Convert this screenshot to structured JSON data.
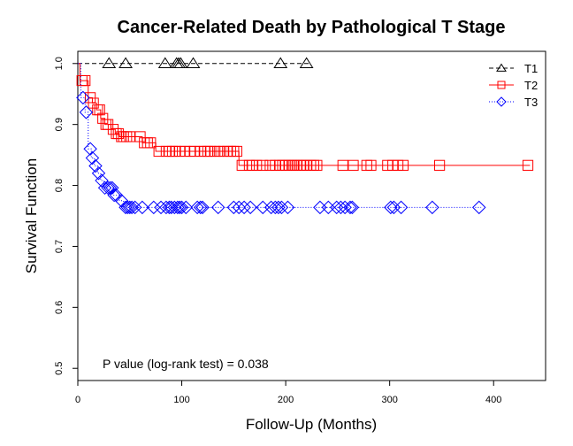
{
  "chart_data": {
    "type": "line",
    "subtype": "kaplan-meier step curves with censor markers",
    "title": "Cancer-Related Death by Pathological T Stage",
    "xlabel": "Follow-Up (Months)",
    "ylabel": "Survival Function",
    "xlim": [
      0,
      450
    ],
    "ylim": [
      0.48,
      1.02
    ],
    "xticks": [
      0,
      100,
      200,
      300,
      400
    ],
    "yticks": [
      0.5,
      0.6,
      0.7,
      0.8,
      0.9,
      1.0
    ],
    "xtick_labels": [
      "0",
      "100",
      "200",
      "300",
      "400"
    ],
    "ytick_labels": [
      "0.5",
      "0.6",
      "0.7",
      "0.8",
      "0.9",
      "1.0"
    ],
    "grid": false,
    "legend_position": "top-right",
    "annotation": "P value (log-rank test) =  0.038",
    "series": [
      {
        "name": "T1",
        "color": "#000000",
        "line_style": "dashed",
        "marker": "triangle",
        "steps": [
          [
            0,
            1.0
          ],
          [
            222,
            1.0
          ]
        ],
        "censored": [
          [
            30,
            1.0
          ],
          [
            46,
            1.0
          ],
          [
            84,
            1.0
          ],
          [
            95,
            1.0
          ],
          [
            97,
            1.0
          ],
          [
            99,
            1.0
          ],
          [
            111,
            1.0
          ],
          [
            195,
            1.0
          ],
          [
            220,
            1.0
          ]
        ]
      },
      {
        "name": "T2",
        "color": "#ff0000",
        "line_style": "solid",
        "marker": "square",
        "steps": [
          [
            0,
            1.0
          ],
          [
            2,
            0.972
          ],
          [
            10,
            0.944
          ],
          [
            14,
            0.935
          ],
          [
            18,
            0.924
          ],
          [
            22,
            0.91
          ],
          [
            26,
            0.9
          ],
          [
            32,
            0.892
          ],
          [
            36,
            0.885
          ],
          [
            40,
            0.88
          ],
          [
            62,
            0.87
          ],
          [
            75,
            0.856
          ],
          [
            155,
            0.833
          ],
          [
            435,
            0.833
          ]
        ],
        "censored": [
          [
            4,
            0.972
          ],
          [
            7,
            0.972
          ],
          [
            12,
            0.944
          ],
          [
            15,
            0.935
          ],
          [
            19,
            0.924
          ],
          [
            21,
            0.924
          ],
          [
            24,
            0.91
          ],
          [
            27,
            0.9
          ],
          [
            29,
            0.9
          ],
          [
            34,
            0.892
          ],
          [
            37,
            0.885
          ],
          [
            39,
            0.885
          ],
          [
            42,
            0.88
          ],
          [
            44,
            0.88
          ],
          [
            47,
            0.88
          ],
          [
            50,
            0.88
          ],
          [
            60,
            0.88
          ],
          [
            64,
            0.87
          ],
          [
            67,
            0.87
          ],
          [
            70,
            0.87
          ],
          [
            78,
            0.856
          ],
          [
            85,
            0.856
          ],
          [
            88,
            0.856
          ],
          [
            91,
            0.856
          ],
          [
            94,
            0.856
          ],
          [
            98,
            0.856
          ],
          [
            103,
            0.856
          ],
          [
            108,
            0.856
          ],
          [
            112,
            0.856
          ],
          [
            118,
            0.856
          ],
          [
            122,
            0.856
          ],
          [
            125,
            0.856
          ],
          [
            128,
            0.856
          ],
          [
            132,
            0.856
          ],
          [
            136,
            0.856
          ],
          [
            140,
            0.856
          ],
          [
            144,
            0.856
          ],
          [
            147,
            0.856
          ],
          [
            150,
            0.856
          ],
          [
            153,
            0.856
          ],
          [
            158,
            0.833
          ],
          [
            165,
            0.833
          ],
          [
            168,
            0.833
          ],
          [
            172,
            0.833
          ],
          [
            178,
            0.833
          ],
          [
            185,
            0.833
          ],
          [
            190,
            0.833
          ],
          [
            194,
            0.833
          ],
          [
            197,
            0.833
          ],
          [
            200,
            0.833
          ],
          [
            203,
            0.833
          ],
          [
            206,
            0.833
          ],
          [
            208,
            0.833
          ],
          [
            211,
            0.833
          ],
          [
            214,
            0.833
          ],
          [
            217,
            0.833
          ],
          [
            220,
            0.833
          ],
          [
            224,
            0.833
          ],
          [
            227,
            0.833
          ],
          [
            230,
            0.833
          ],
          [
            255,
            0.833
          ],
          [
            265,
            0.833
          ],
          [
            278,
            0.833
          ],
          [
            282,
            0.833
          ],
          [
            298,
            0.833
          ],
          [
            303,
            0.833
          ],
          [
            308,
            0.833
          ],
          [
            313,
            0.833
          ],
          [
            348,
            0.833
          ],
          [
            433,
            0.833
          ]
        ]
      },
      {
        "name": "T3",
        "color": "#0000ff",
        "line_style": "dotted",
        "marker": "diamond",
        "steps": [
          [
            0,
            1.0
          ],
          [
            3,
            0.944
          ],
          [
            7,
            0.92
          ],
          [
            10,
            0.86
          ],
          [
            13,
            0.845
          ],
          [
            16,
            0.832
          ],
          [
            19,
            0.82
          ],
          [
            22,
            0.808
          ],
          [
            25,
            0.796
          ],
          [
            34,
            0.784
          ],
          [
            40,
            0.775
          ],
          [
            44,
            0.764
          ],
          [
            388,
            0.764
          ]
        ],
        "censored": [
          [
            5,
            0.944
          ],
          [
            8,
            0.92
          ],
          [
            12,
            0.86
          ],
          [
            14,
            0.845
          ],
          [
            17,
            0.832
          ],
          [
            20,
            0.82
          ],
          [
            23,
            0.808
          ],
          [
            26,
            0.796
          ],
          [
            29,
            0.796
          ],
          [
            31,
            0.796
          ],
          [
            33,
            0.796
          ],
          [
            35,
            0.784
          ],
          [
            37,
            0.784
          ],
          [
            42,
            0.775
          ],
          [
            46,
            0.764
          ],
          [
            48,
            0.764
          ],
          [
            50,
            0.764
          ],
          [
            52,
            0.764
          ],
          [
            55,
            0.764
          ],
          [
            62,
            0.764
          ],
          [
            73,
            0.764
          ],
          [
            80,
            0.764
          ],
          [
            85,
            0.764
          ],
          [
            88,
            0.764
          ],
          [
            90,
            0.764
          ],
          [
            93,
            0.764
          ],
          [
            96,
            0.764
          ],
          [
            98,
            0.764
          ],
          [
            100,
            0.764
          ],
          [
            104,
            0.764
          ],
          [
            115,
            0.764
          ],
          [
            118,
            0.764
          ],
          [
            120,
            0.764
          ],
          [
            135,
            0.764
          ],
          [
            150,
            0.764
          ],
          [
            155,
            0.764
          ],
          [
            160,
            0.764
          ],
          [
            166,
            0.764
          ],
          [
            178,
            0.764
          ],
          [
            186,
            0.764
          ],
          [
            190,
            0.764
          ],
          [
            193,
            0.764
          ],
          [
            196,
            0.764
          ],
          [
            202,
            0.764
          ],
          [
            233,
            0.764
          ],
          [
            241,
            0.764
          ],
          [
            249,
            0.764
          ],
          [
            253,
            0.764
          ],
          [
            257,
            0.764
          ],
          [
            262,
            0.764
          ],
          [
            264,
            0.764
          ],
          [
            301,
            0.764
          ],
          [
            304,
            0.764
          ],
          [
            311,
            0.764
          ],
          [
            341,
            0.764
          ],
          [
            386,
            0.764
          ]
        ]
      }
    ]
  }
}
